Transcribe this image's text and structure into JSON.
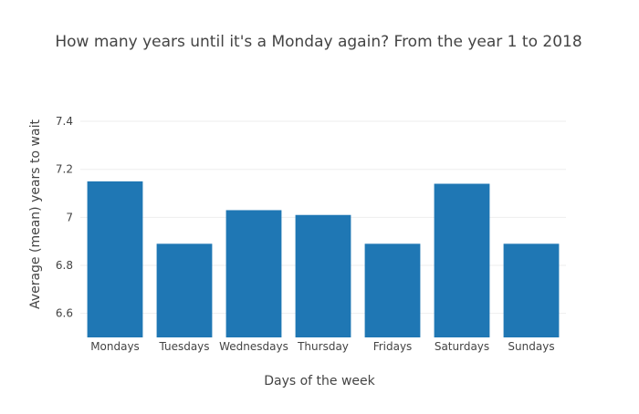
{
  "chart_data": {
    "type": "bar",
    "title": "How many years until it's a Monday again? From the year 1 to 2018",
    "xlabel": "Days of the week",
    "ylabel": "Average (mean) years to wait",
    "categories": [
      "Mondays",
      "Tuesdays",
      "Wednesdays",
      "Thursday",
      "Fridays",
      "Saturdays",
      "Sundays"
    ],
    "values": [
      7.15,
      6.89,
      7.03,
      7.01,
      6.89,
      7.14,
      6.89
    ],
    "ylim": [
      6.5,
      7.48
    ],
    "yticks": [
      6.6,
      6.8,
      7.0,
      7.2,
      7.4
    ],
    "ytick_labels": [
      "6.6",
      "6.8",
      "7",
      "7.2",
      "7.4"
    ],
    "grid": true,
    "legend": "none",
    "bar_color": "#1f77b4",
    "grid_color": "#eeeeee",
    "text_color": "#444444"
  }
}
